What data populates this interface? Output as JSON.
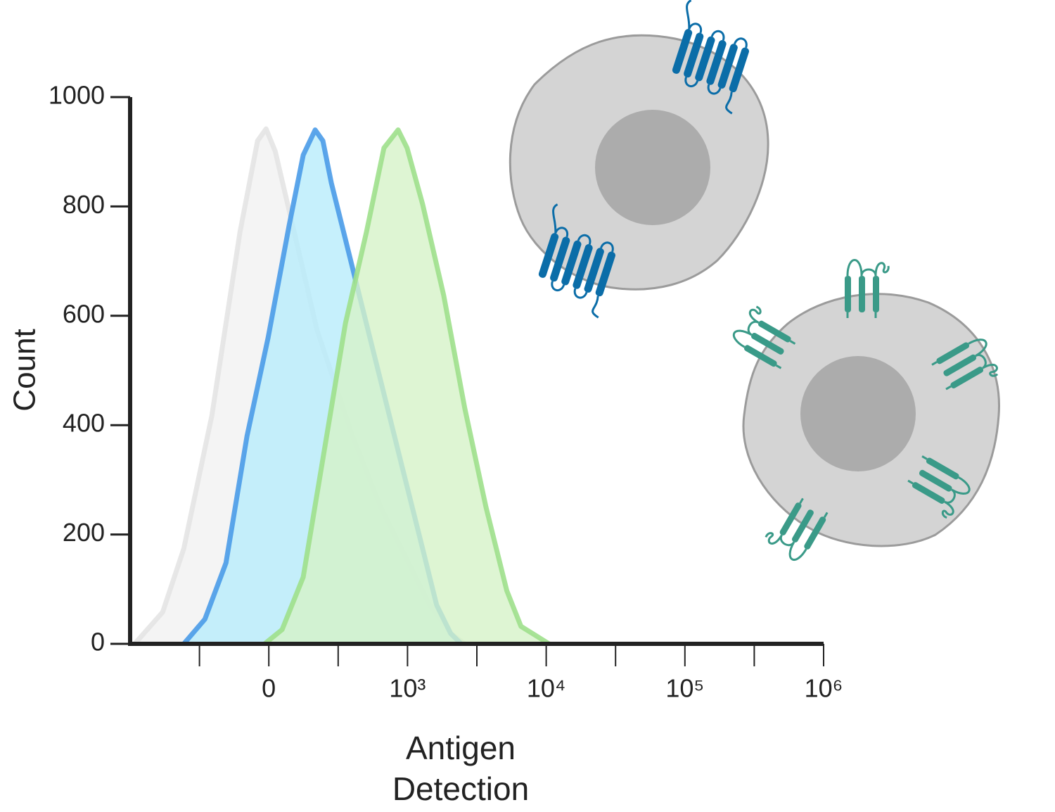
{
  "chart_data": {
    "type": "area",
    "xlabel": "Antigen Detection",
    "ylabel": "Count",
    "xscale": "biexponential",
    "xlim": [
      -1000,
      1000000
    ],
    "ylim": [
      0,
      1000
    ],
    "xticks": [
      {
        "value": 0,
        "label": "0"
      },
      {
        "value": 1000,
        "label": "10³"
      },
      {
        "value": 10000,
        "label": "10⁴"
      },
      {
        "value": 100000,
        "label": "10⁵"
      },
      {
        "value": 1000000,
        "label": "10⁶"
      }
    ],
    "xminorticks": [
      -500,
      500,
      3162,
      31623,
      316228
    ],
    "yticks": [
      0,
      200,
      400,
      600,
      800,
      1000
    ],
    "series": [
      {
        "color": "#e4e4e4",
        "fill": "#f1f1f1",
        "x": [
          -967,
          -765,
          -613,
          -410,
          -208,
          -81,
          -20,
          46,
          147,
          349,
          603,
          805,
          1019,
          1443,
          2046,
          2588
        ],
        "values": [
          0,
          58,
          174,
          418,
          753,
          920,
          942,
          901,
          792,
          573,
          380,
          251,
          148,
          71,
          19,
          0
        ]
      },
      {
        "color": "#4a9be8",
        "fill": "#b8ecfb",
        "x": [
          -613,
          -461,
          -309,
          -157,
          -5,
          147,
          248,
          334,
          390,
          451,
          552,
          653,
          805,
          957,
          1285,
          1622,
          2046,
          2438
        ],
        "values": [
          0,
          45,
          148,
          380,
          560,
          766,
          894,
          940,
          920,
          843,
          740,
          637,
          483,
          328,
          174,
          71,
          19,
          0
        ]
      },
      {
        "color": "#9ee08c",
        "fill": "#d6f3c8",
        "x": [
          -30,
          96,
          248,
          400,
          552,
          704,
          830,
          932,
          997,
          1285,
          1824,
          2588,
          3673,
          5200,
          6577,
          10471
        ],
        "values": [
          0,
          26,
          122,
          354,
          586,
          753,
          907,
          940,
          907,
          804,
          637,
          431,
          251,
          97,
          32,
          0
        ]
      }
    ]
  }
}
